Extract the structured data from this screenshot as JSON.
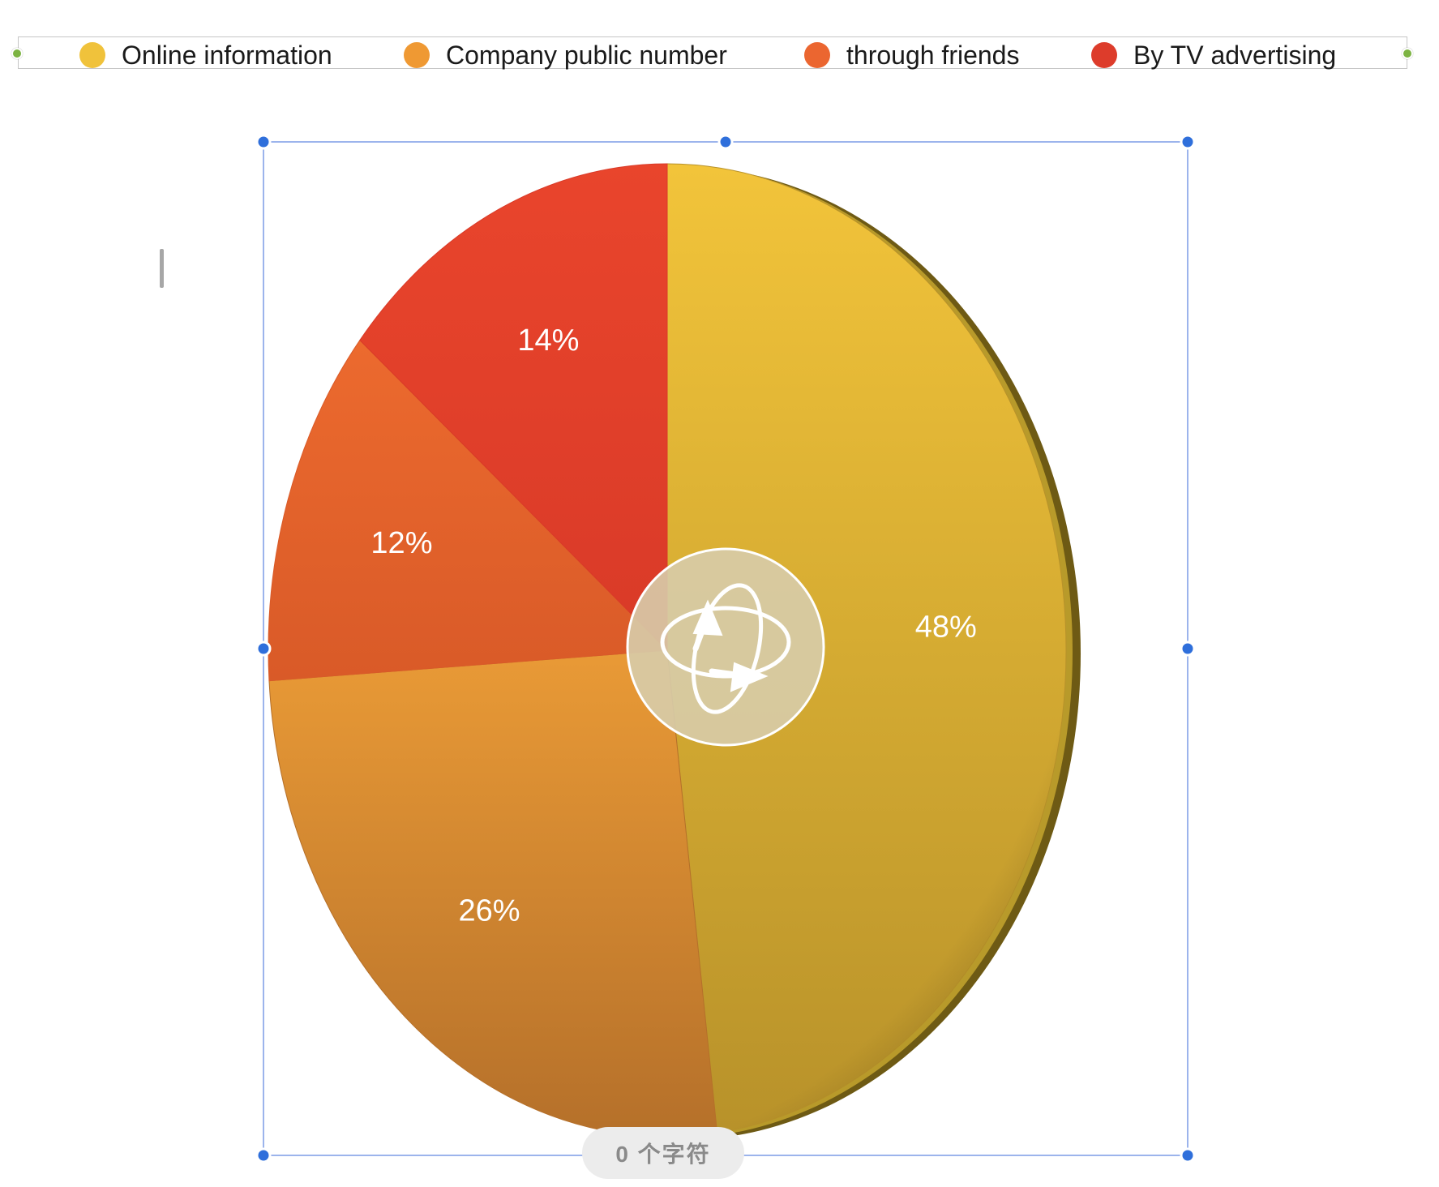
{
  "legend": {
    "items": [
      {
        "label": "Online information",
        "color": "#f0c23b"
      },
      {
        "label": "Company public number",
        "color": "#ef9933"
      },
      {
        "label": "through friends",
        "color": "#eb6630"
      },
      {
        "label": "By TV advertising",
        "color": "#dd3c2b"
      }
    ]
  },
  "chart_data": {
    "type": "pie",
    "style": "3d",
    "slices": [
      {
        "name": "Online information",
        "value": 48,
        "label": "48%",
        "color": "#f2c43a",
        "shade": "#b8922a"
      },
      {
        "name": "Company public number",
        "value": 26,
        "label": "26%",
        "color": "#e99a36",
        "shade": "#b5702a"
      },
      {
        "name": "through friends",
        "value": 12,
        "label": "12%",
        "color": "#ec6a2e",
        "shade": "#d95a28"
      },
      {
        "name": "By TV advertising",
        "value": 14,
        "label": "14%",
        "color": "#e9452c",
        "shade": "#d93a28"
      }
    ],
    "start": "top, clockwise",
    "legend_position": "top"
  },
  "status": {
    "char_count": "0 个字符"
  },
  "icons": {
    "rotate": "rotate-3d-icon"
  }
}
